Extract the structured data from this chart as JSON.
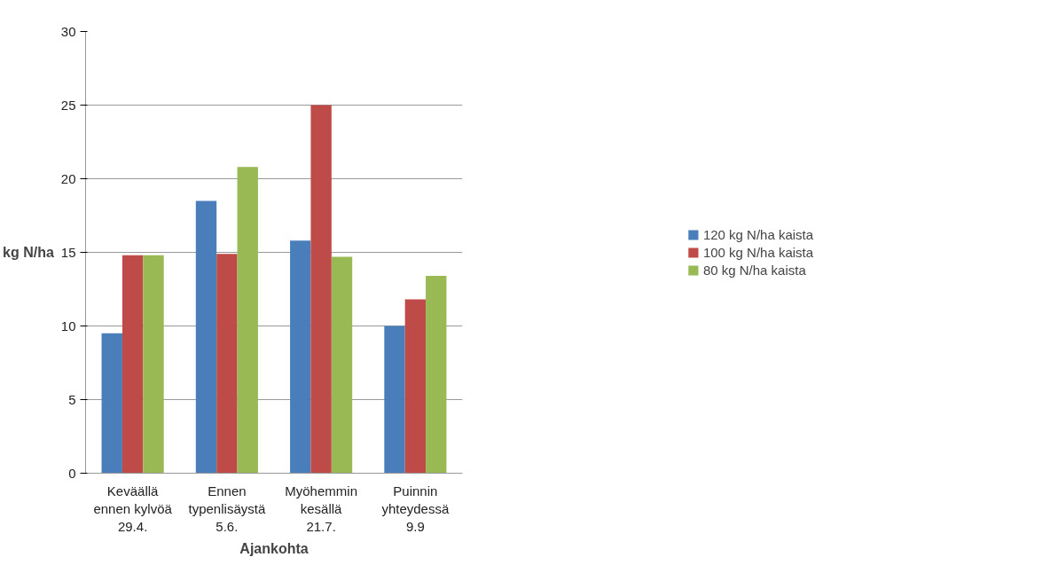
{
  "chart_data": {
    "type": "bar",
    "xlabel": "Ajankohta",
    "ylabel": "kg N/ha",
    "categories": [
      "Keväällä\nennen kylvöä\n29.4.",
      "Ennen\ntypenlisäystä\n5.6.",
      "Myöhemmin\nkesällä\n21.7.",
      "Puinnin\nyhteydessä\n9.9"
    ],
    "series": [
      {
        "name": "120 kg N/ha kaista",
        "color": "#4a7ebb",
        "values": [
          9.5,
          18.5,
          15.8,
          10.0
        ]
      },
      {
        "name": "100 kg N/ha kaista",
        "color": "#be4b48",
        "values": [
          14.8,
          14.9,
          25.0,
          11.8
        ]
      },
      {
        "name": "80 kg N/ha kaista",
        "color": "#98b954",
        "values": [
          14.8,
          20.8,
          14.7,
          13.4
        ]
      }
    ],
    "ylim": [
      0,
      30
    ],
    "yticks": [
      0,
      5,
      10,
      15,
      20,
      25,
      30
    ],
    "grid": "y",
    "legend": "right"
  }
}
